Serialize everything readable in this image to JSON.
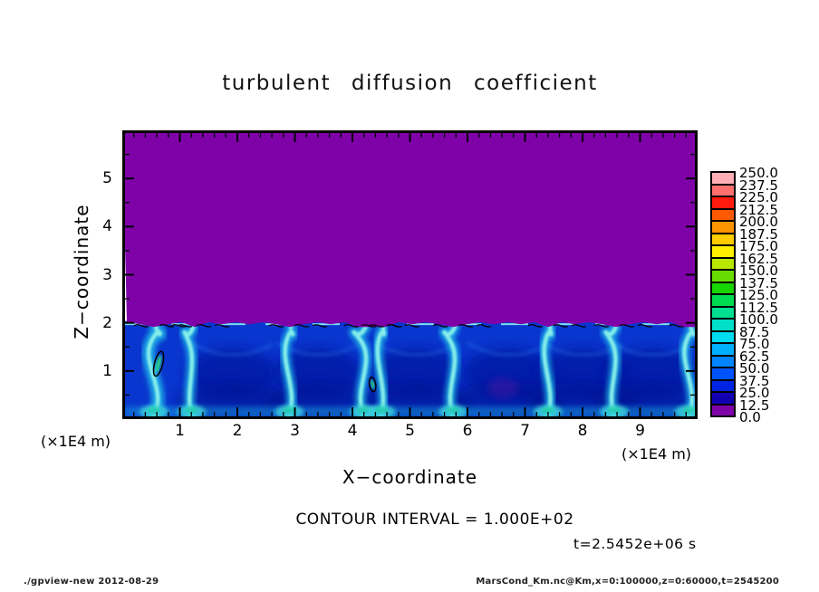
{
  "title": "turbulent diffusion coefficient",
  "axes": {
    "x": {
      "label": "X−coordinate",
      "unit_note": "(×1E4 m)",
      "range": [
        0,
        10
      ],
      "major_step": 1,
      "minor_step": 0.2,
      "ticks": [
        "1",
        "2",
        "3",
        "4",
        "5",
        "6",
        "7",
        "8",
        "9"
      ]
    },
    "y": {
      "label": "Z−coordinate",
      "unit_note": "(×1E4 m)",
      "range": [
        0,
        6
      ],
      "major_step": 1,
      "minor_step": 0.5,
      "ticks": [
        "1",
        "2",
        "3",
        "4",
        "5"
      ]
    }
  },
  "colorbar": {
    "tick_labels": [
      "0.0",
      "12.5",
      "25.0",
      "37.5",
      "50.0",
      "62.5",
      "75.0",
      "87.5",
      "100.0",
      "112.5",
      "125.0",
      "137.5",
      "150.0",
      "162.5",
      "175.0",
      "187.5",
      "200.0",
      "212.5",
      "225.0",
      "237.5",
      "250.0"
    ],
    "colors_bottom_to_top": [
      "#7f02a8",
      "#1000b0",
      "#0024e4",
      "#0054ff",
      "#0084ff",
      "#00b0ff",
      "#00dcf0",
      "#00e0c8",
      "#00e090",
      "#00dc50",
      "#18d400",
      "#68dc00",
      "#b8e800",
      "#fff000",
      "#ffcc00",
      "#ff9400",
      "#ff5800",
      "#ff1a0e",
      "#ff7070",
      "#ffaeb6"
    ]
  },
  "annotations": {
    "contour_note": "CONTOUR INTERVAL = 1.000E+02",
    "time_note": "t=2.5452e+06 s"
  },
  "footer": {
    "left": "./gpview-new  2012-08-29",
    "right": "MarsCond_Km.nc@Km,x=0:100000,z=0:60000,t=2545200"
  },
  "chart_data": {
    "type": "heatmap",
    "title": "turbulent diffusion coefficient",
    "xlabel": "X−coordinate (×1E4 m)",
    "ylabel": "Z−coordinate (×1E4 m)",
    "x_range_m": [
      0,
      100000
    ],
    "z_range_m": [
      0,
      60000
    ],
    "value_range": [
      0,
      250
    ],
    "value_step_colorbar": 12.5,
    "contour_interval": 100,
    "time_s": "2.5452e+06",
    "field_summary": {
      "interface_z_1e4m": 2.0,
      "upper_region": "z > 2×1E4 m: uniform value ≈ 0 (purple, below 12.5)",
      "lower_region": "z < 2×1E4 m: turbulent convection, values mostly 12.5–100 (blue to cyan)",
      "base_value_band": [
        25,
        50
      ],
      "plume_value_band": [
        75,
        112.5
      ]
    },
    "plumes_x_1e4m": [
      0.55,
      1.2,
      2.9,
      4.2,
      4.5,
      5.75,
      7.4,
      8.55,
      9.85
    ],
    "eddy_cores_x_1e4m": [
      1.9,
      3.4,
      5.1,
      6.7,
      8.0,
      9.2
    ],
    "contour100_closed_loops": [
      {
        "x_1e4m": 0.63,
        "z_1e4m": 1.15
      },
      {
        "x_1e4m": 4.35,
        "z_1e4m": 0.72
      }
    ],
    "weak_spot": {
      "x_1e4m": 6.62,
      "z_1e4m": 0.65
    }
  }
}
